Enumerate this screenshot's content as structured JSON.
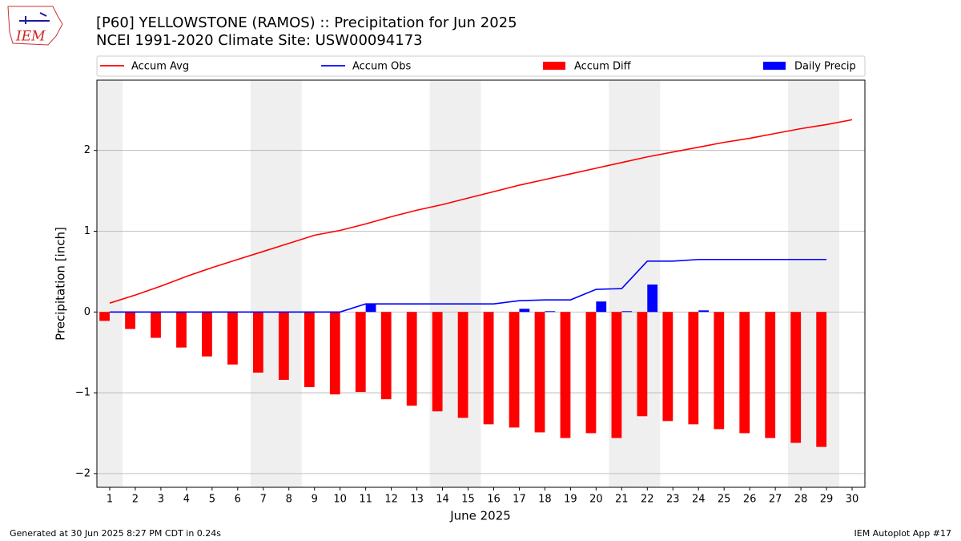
{
  "logo": "IEM",
  "footer": {
    "left": "Generated at 30 Jun 2025 8:27 PM CDT in 0.24s",
    "right": "IEM Autoplot App #17"
  },
  "chart_data": {
    "type": "bar",
    "title": "[P60] YELLOWSTONE (RAMOS) :: Precipitation for Jun 2025",
    "subtitle": "NCEI 1991-2020 Climate Site: USW00094173",
    "xlabel": "June 2025",
    "ylabel": "Precipitation [inch]",
    "x": [
      1,
      2,
      3,
      4,
      5,
      6,
      7,
      8,
      9,
      10,
      11,
      12,
      13,
      14,
      15,
      16,
      17,
      18,
      19,
      20,
      21,
      22,
      23,
      24,
      25,
      26,
      27,
      28,
      29,
      30
    ],
    "xlim": [
      0.5,
      30.5
    ],
    "xticks": [
      1,
      2,
      3,
      4,
      5,
      6,
      7,
      8,
      9,
      10,
      11,
      12,
      13,
      14,
      15,
      16,
      17,
      18,
      19,
      20,
      21,
      22,
      23,
      24,
      25,
      26,
      27,
      28,
      29,
      30
    ],
    "ylim": [
      -2.17,
      2.87
    ],
    "yticks": [
      {
        "value": -2,
        "label": "−2"
      },
      {
        "value": -1,
        "label": "−1"
      },
      0,
      1,
      2
    ],
    "grid": true,
    "shaded_days": [
      1,
      7,
      8,
      14,
      15,
      21,
      22,
      28,
      29
    ],
    "shade_color": "#efefef",
    "series": [
      {
        "name": "Accum Avg",
        "type": "line",
        "color": "#ff0000",
        "values": [
          0.11,
          0.21,
          0.32,
          0.44,
          0.55,
          0.65,
          0.75,
          0.85,
          0.95,
          1.01,
          1.09,
          1.18,
          1.26,
          1.33,
          1.41,
          1.49,
          1.57,
          1.64,
          1.71,
          1.78,
          1.85,
          1.92,
          1.98,
          2.04,
          2.1,
          2.15,
          2.21,
          2.27,
          2.32,
          2.38
        ]
      },
      {
        "name": "Accum Obs",
        "type": "line",
        "color": "#0000ff",
        "values": [
          0,
          0,
          0,
          0,
          0,
          0,
          0,
          0,
          0,
          0,
          0.1,
          0.1,
          0.1,
          0.1,
          0.1,
          0.1,
          0.14,
          0.15,
          0.15,
          0.28,
          0.29,
          0.63,
          0.63,
          0.65,
          0.65,
          0.65,
          0.65,
          0.65,
          0.65,
          null
        ]
      },
      {
        "name": "Accum Diff",
        "type": "bar",
        "side": "left",
        "color": "#ff0000",
        "values": [
          -0.11,
          -0.21,
          -0.32,
          -0.44,
          -0.55,
          -0.65,
          -0.75,
          -0.84,
          -0.93,
          -1.02,
          -0.99,
          -1.08,
          -1.16,
          -1.23,
          -1.31,
          -1.39,
          -1.43,
          -1.49,
          -1.56,
          -1.5,
          -1.56,
          -1.29,
          -1.35,
          -1.39,
          -1.45,
          -1.5,
          -1.56,
          -1.62,
          -1.67,
          null
        ]
      },
      {
        "name": "Daily Precip",
        "type": "bar",
        "side": "right",
        "color": "#0000ff",
        "values": [
          0,
          0,
          0,
          0,
          0,
          0,
          0,
          0,
          0,
          0,
          0.1,
          0,
          0,
          0,
          0,
          0,
          0.04,
          0.01,
          0,
          0.13,
          0.01,
          0.34,
          0,
          0.02,
          0,
          0,
          0,
          0,
          0,
          null
        ]
      }
    ]
  }
}
